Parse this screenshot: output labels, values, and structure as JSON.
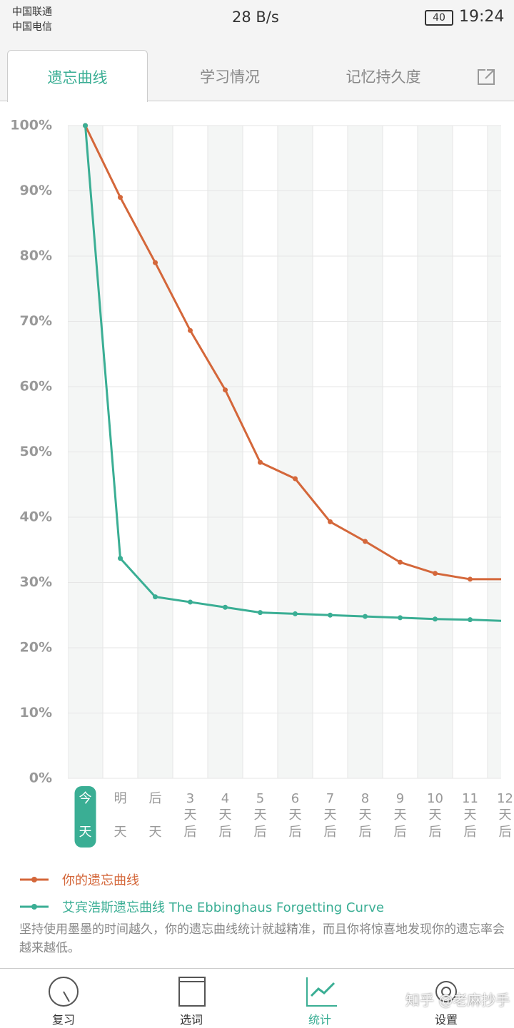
{
  "status_bar": {
    "carrier1": "中国联通",
    "carrier2": "中国电信",
    "speed": "28 B/s",
    "battery": "40",
    "time": "19:24"
  },
  "tabs": [
    "遗忘曲线",
    "学习情况",
    "记忆持久度"
  ],
  "chart_data": {
    "type": "line",
    "categories": [
      "今天",
      "明天",
      "后天",
      "3天后",
      "4天后",
      "5天后",
      "6天后",
      "7天后",
      "8天后",
      "9天后",
      "10天后",
      "11天后",
      "12天后"
    ],
    "series": [
      {
        "name": "你的遗忘曲线",
        "color": "#d4673a",
        "values": [
          100,
          89,
          79,
          68.6,
          59.5,
          48.4,
          45.9,
          39.3,
          36.3,
          33.1,
          31.4,
          30.5,
          30.5
        ]
      },
      {
        "name": "艾宾浩斯遗忘曲线 The Ebbinghaus Forgetting Curve",
        "color": "#3aae94",
        "values": [
          100,
          33.7,
          27.8,
          27.0,
          26.2,
          25.4,
          25.2,
          25.0,
          24.8,
          24.6,
          24.4,
          24.3,
          24.1
        ]
      }
    ],
    "ylim": [
      0,
      100
    ],
    "yticks": [
      {
        "value": 0,
        "label": "0%"
      },
      {
        "value": 10,
        "label": "10%"
      },
      {
        "value": 20,
        "label": "20%"
      },
      {
        "value": 30,
        "label": "30%"
      },
      {
        "value": 40,
        "label": "40%"
      },
      {
        "value": 50,
        "label": "50%"
      },
      {
        "value": 60,
        "label": "60%"
      },
      {
        "value": 70,
        "label": "70%"
      },
      {
        "value": 80,
        "label": "80%"
      },
      {
        "value": 90,
        "label": "90%"
      },
      {
        "value": 100,
        "label": "100%"
      }
    ],
    "grid": true
  },
  "note": "坚持使用墨墨的时间越久，你的遗忘曲线统计就越精准，而且你将惊喜地发现你的遗忘率会越来越低。",
  "nav": [
    "复习",
    "选词",
    "统计",
    "设置"
  ],
  "watermark": "知乎 @老麻抄手"
}
